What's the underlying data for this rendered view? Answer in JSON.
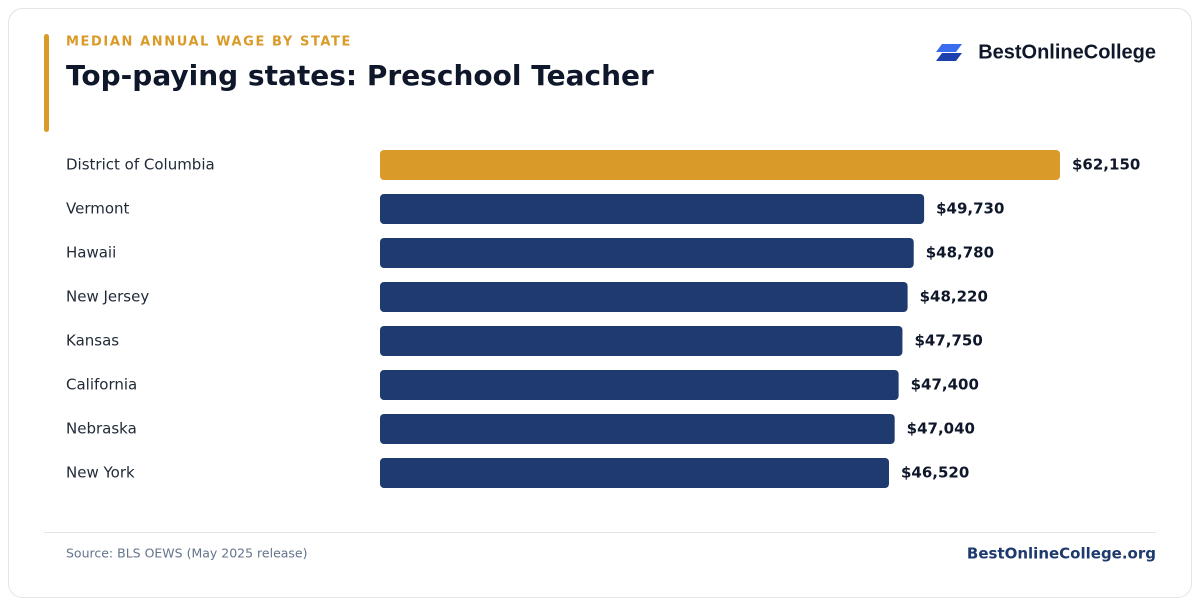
{
  "chart_data": {
    "type": "bar",
    "kicker": "MEDIAN ANNUAL WAGE BY STATE",
    "title": "Top-paying states: Preschool Teacher",
    "brand": "BestOnlineCollege",
    "categories": [
      "District of Columbia",
      "Vermont",
      "Hawaii",
      "New Jersey",
      "Kansas",
      "California",
      "Nebraska",
      "New York"
    ],
    "values": [
      62150,
      49730,
      48780,
      48220,
      47750,
      47400,
      47040,
      46520
    ],
    "value_labels": [
      "$62,150",
      "$49,730",
      "$48,780",
      "$48,220",
      "$47,750",
      "$47,400",
      "$47,040",
      "$46,520"
    ],
    "colors": [
      "#d99a27",
      "#1e3a6e",
      "#1e3a6e",
      "#1e3a6e",
      "#1e3a6e",
      "#1e3a6e",
      "#1e3a6e",
      "#1e3a6e"
    ],
    "source": "Source: BLS OEWS (May 2025 release)",
    "footer": "BestOnlineCollege.org"
  }
}
